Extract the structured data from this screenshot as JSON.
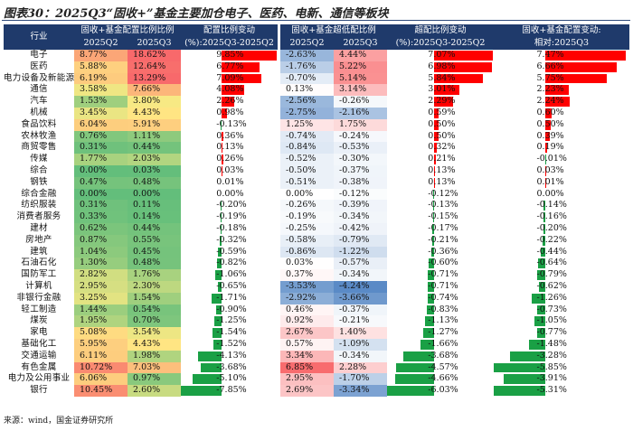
{
  "title": "图表30：2025Q3“固收+”基金主要加仓电子、医药、电新、通信等板块",
  "source": "来源：wind，国金证券研究所",
  "headers": {
    "industry": "行业",
    "group1": "固收+基金配置比例比例",
    "group2": "固收+基金超低配比例",
    "col_q2": "2025Q2",
    "col_q3": "2025Q3",
    "chg1_l1": "配置比例变动",
    "chg1_l2": "(%):2025Q3-2025Q2",
    "chg2_l1": "超配比例变动",
    "chg2_l2": "(%):2025Q3-2025Q2",
    "rel_l1": "固收+基金配置变动:",
    "rel_l2": "相对:2025Q3"
  },
  "rows": [
    {
      "industry": "电子",
      "q2": "8.77%",
      "q3": "18.62%",
      "chg": "9.85%",
      "uq2": "-2.63%",
      "uq3": "4.44%",
      "uchg": "7.07%",
      "rel": "7.47%"
    },
    {
      "industry": "医药",
      "q2": "5.88%",
      "q3": "12.64%",
      "chg": "6.77%",
      "uq2": "-1.76%",
      "uq3": "5.22%",
      "uchg": "6.98%",
      "rel": "6.66%"
    },
    {
      "industry": "电力设备及新能源",
      "q2": "6.19%",
      "q3": "13.29%",
      "chg": "7.09%",
      "uq2": "-0.70%",
      "uq3": "5.14%",
      "uchg": "5.84%",
      "rel": "5.75%"
    },
    {
      "industry": "通信",
      "q2": "3.58%",
      "q3": "7.66%",
      "chg": "4.08%",
      "uq2": "0.13%",
      "uq3": "3.14%",
      "uchg": "3.01%",
      "rel": "2.23%"
    },
    {
      "industry": "汽车",
      "q2": "1.53%",
      "q3": "3.80%",
      "chg": "2.26%",
      "uq2": "-2.56%",
      "uq3": "-0.26%",
      "uchg": "2.29%",
      "rel": "2.24%"
    },
    {
      "industry": "机械",
      "q2": "3.45%",
      "q3": "4.43%",
      "chg": "0.98%",
      "uq2": "-2.75%",
      "uq3": "-2.16%",
      "uchg": "0.59%",
      "rel": "0.60%"
    },
    {
      "industry": "食品饮料",
      "q2": "6.04%",
      "q3": "5.91%",
      "chg": "-0.13%",
      "uq2": "1.25%",
      "uq3": "1.75%",
      "uchg": "0.50%",
      "rel": "0.50%"
    },
    {
      "industry": "农林牧渔",
      "q2": "0.76%",
      "q3": "1.11%",
      "chg": "0.36%",
      "uq2": "-0.74%",
      "uq3": "-0.24%",
      "uchg": "0.50%",
      "rel": "0.39%"
    },
    {
      "industry": "商贸零售",
      "q2": "0.31%",
      "q3": "0.44%",
      "chg": "0.13%",
      "uq2": "-0.84%",
      "uq3": "-0.53%",
      "uchg": "0.32%",
      "rel": "0.19%"
    },
    {
      "industry": "传媒",
      "q2": "1.77%",
      "q3": "2.03%",
      "chg": "0.26%",
      "uq2": "-0.52%",
      "uq3": "-0.30%",
      "uchg": "0.21%",
      "rel": "-0.01%"
    },
    {
      "industry": "综合",
      "q2": "0.00%",
      "q3": "0.03%",
      "chg": "0.03%",
      "uq2": "-0.50%",
      "uq3": "-0.37%",
      "uchg": "0.13%",
      "rel": "0.03%"
    },
    {
      "industry": "钢铁",
      "q2": "0.47%",
      "q3": "0.48%",
      "chg": "0.01%",
      "uq2": "-0.51%",
      "uq3": "-0.38%",
      "uchg": "0.13%",
      "rel": "0.01%"
    },
    {
      "industry": "综合金融",
      "q2": "0.00%",
      "q3": "0.00%",
      "chg": "0.00%",
      "uq2": "0.00%",
      "uq3": "-0.12%",
      "uchg": "-0.12%",
      "rel": "0.00%"
    },
    {
      "industry": "纺织服装",
      "q2": "0.31%",
      "q3": "0.11%",
      "chg": "-0.20%",
      "uq2": "-0.26%",
      "uq3": "-0.39%",
      "uchg": "-0.13%",
      "rel": "-0.14%"
    },
    {
      "industry": "消费者服务",
      "q2": "0.33%",
      "q3": "0.14%",
      "chg": "-0.19%",
      "uq2": "-0.19%",
      "uq3": "-0.34%",
      "uchg": "-0.15%",
      "rel": "-0.16%"
    },
    {
      "industry": "建材",
      "q2": "0.62%",
      "q3": "0.44%",
      "chg": "-0.18%",
      "uq2": "-0.25%",
      "uq3": "-0.42%",
      "uchg": "-0.17%",
      "rel": "-0.20%"
    },
    {
      "industry": "房地产",
      "q2": "0.87%",
      "q3": "0.55%",
      "chg": "-0.32%",
      "uq2": "-0.58%",
      "uq3": "-0.79%",
      "uchg": "-0.21%",
      "rel": "-0.22%"
    },
    {
      "industry": "建筑",
      "q2": "1.04%",
      "q3": "0.45%",
      "chg": "-0.59%",
      "uq2": "-0.86%",
      "uq3": "-1.22%",
      "uchg": "-0.36%",
      "rel": "-0.44%"
    },
    {
      "industry": "石油石化",
      "q2": "1.30%",
      "q3": "0.48%",
      "chg": "-0.82%",
      "uq2": "0.03%",
      "uq3": "-0.57%",
      "uchg": "-0.60%",
      "rel": "-0.64%"
    },
    {
      "industry": "国防军工",
      "q2": "2.82%",
      "q3": "1.76%",
      "chg": "-1.06%",
      "uq2": "0.37%",
      "uq3": "-0.34%",
      "uchg": "-0.71%",
      "rel": "-0.79%"
    },
    {
      "industry": "计算机",
      "q2": "2.95%",
      "q3": "2.30%",
      "chg": "-0.65%",
      "uq2": "-3.53%",
      "uq3": "-4.24%",
      "uchg": "-0.71%",
      "rel": "-0.62%"
    },
    {
      "industry": "非银行金融",
      "q2": "3.25%",
      "q3": "1.54%",
      "chg": "-1.71%",
      "uq2": "-2.92%",
      "uq3": "-3.66%",
      "uchg": "-0.74%",
      "rel": "-1.26%"
    },
    {
      "industry": "轻工制造",
      "q2": "1.44%",
      "q3": "0.54%",
      "chg": "-0.90%",
      "uq2": "0.46%",
      "uq3": "-0.37%",
      "uchg": "-0.83%",
      "rel": "-0.73%"
    },
    {
      "industry": "煤炭",
      "q2": "1.95%",
      "q3": "0.70%",
      "chg": "-1.25%",
      "uq2": "0.92%",
      "uq3": "-0.21%",
      "uchg": "-1.13%",
      "rel": "-1.05%"
    },
    {
      "industry": "家电",
      "q2": "5.08%",
      "q3": "3.54%",
      "chg": "-1.54%",
      "uq2": "2.67%",
      "uq3": "1.40%",
      "uchg": "-1.27%",
      "rel": "-0.77%"
    },
    {
      "industry": "基础化工",
      "q2": "5.95%",
      "q3": "4.43%",
      "chg": "-1.52%",
      "uq2": "0.57%",
      "uq3": "-1.09%",
      "uchg": "-1.66%",
      "rel": "-1.48%"
    },
    {
      "industry": "交通运输",
      "q2": "6.11%",
      "q3": "1.98%",
      "chg": "-4.13%",
      "uq2": "3.34%",
      "uq3": "-0.34%",
      "uchg": "-3.68%",
      "rel": "-3.28%"
    },
    {
      "industry": "有色金属",
      "q2": "10.72%",
      "q3": "7.03%",
      "chg": "-3.68%",
      "uq2": "6.85%",
      "uq3": "2.28%",
      "uchg": "-4.57%",
      "rel": "-5.85%"
    },
    {
      "industry": "电力及公用事业",
      "q2": "6.06%",
      "q3": "0.97%",
      "chg": "-5.10%",
      "uq2": "2.95%",
      "uq3": "-1.70%",
      "uchg": "-4.66%",
      "rel": "-3.91%"
    },
    {
      "industry": "银行",
      "q2": "10.45%",
      "q3": "2.60%",
      "chg": "-7.85%",
      "uq2": "2.69%",
      "uq3": "-3.34%",
      "uchg": "-6.03%",
      "rel": "-5.31%"
    }
  ],
  "colors": {
    "header_bg": "#1f3a6b",
    "bar_pos": "#ff0000",
    "bar_neg": "#1aa045",
    "heat_low": "#63be7b",
    "heat_mid": "#ffeb84",
    "heat_high": "#f8696b",
    "div_neg": "#5a8ac6",
    "div_pos": "#f8696b"
  }
}
